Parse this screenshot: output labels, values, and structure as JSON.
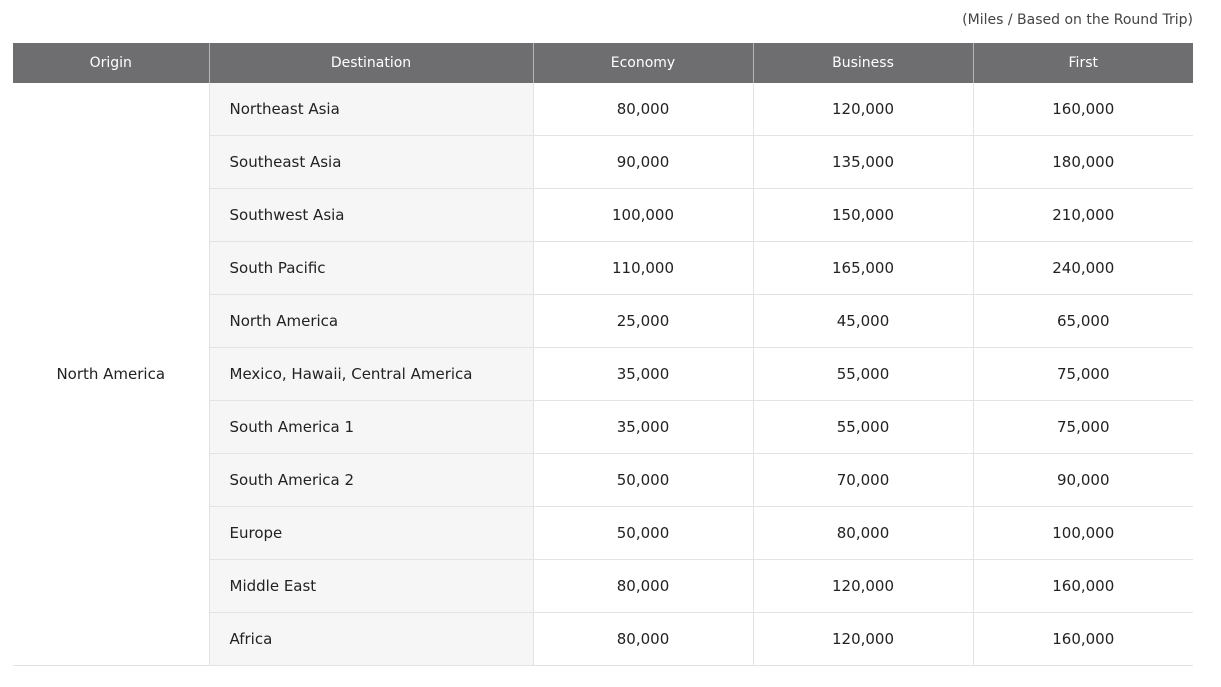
{
  "unit_note": "(Miles / Based on the Round Trip)",
  "header": {
    "origin": "Origin",
    "destination": "Destination",
    "economy": "Economy",
    "business": "Business",
    "first": "First"
  },
  "origin": "North America",
  "rows": [
    {
      "destination": "Northeast Asia",
      "economy": "80,000",
      "business": "120,000",
      "first": "160,000"
    },
    {
      "destination": "Southeast Asia",
      "economy": "90,000",
      "business": "135,000",
      "first": "180,000"
    },
    {
      "destination": "Southwest Asia",
      "economy": "100,000",
      "business": "150,000",
      "first": "210,000"
    },
    {
      "destination": "South Pacific",
      "economy": "110,000",
      "business": "165,000",
      "first": "240,000"
    },
    {
      "destination": "North America",
      "economy": "25,000",
      "business": "45,000",
      "first": "65,000"
    },
    {
      "destination": "Mexico, Hawaii, Central America",
      "economy": "35,000",
      "business": "55,000",
      "first": "75,000"
    },
    {
      "destination": "South America 1",
      "economy": "35,000",
      "business": "55,000",
      "first": "75,000"
    },
    {
      "destination": "South America 2",
      "economy": "50,000",
      "business": "70,000",
      "first": "90,000"
    },
    {
      "destination": "Europe",
      "economy": "50,000",
      "business": "80,000",
      "first": "100,000"
    },
    {
      "destination": "Middle East",
      "economy": "80,000",
      "business": "120,000",
      "first": "160,000"
    },
    {
      "destination": "Africa",
      "economy": "80,000",
      "business": "120,000",
      "first": "160,000"
    }
  ],
  "colors": {
    "header_bg": "#6e6e70",
    "header_text": "#ffffff",
    "destination_bg": "#f6f6f6",
    "row_border": "#e3e3e3"
  }
}
